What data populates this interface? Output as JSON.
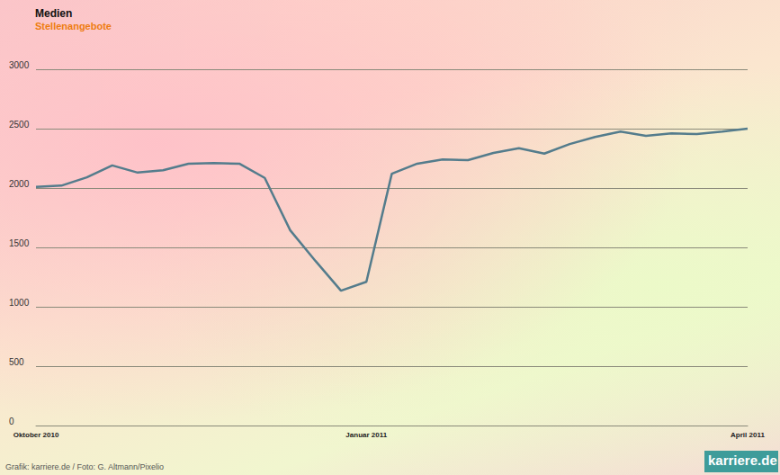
{
  "chart_data": {
    "type": "line",
    "title": "Medien",
    "subtitle": "Stellenangebote",
    "categories": [
      "Oktober 2010",
      null,
      null,
      null,
      null,
      null,
      null,
      null,
      null,
      null,
      null,
      null,
      null,
      "Januar 2011",
      null,
      null,
      null,
      null,
      null,
      null,
      null,
      null,
      null,
      null,
      null,
      null,
      null,
      null,
      "April 2011"
    ],
    "values": [
      2010,
      2020,
      2090,
      2190,
      2130,
      2150,
      2205,
      2210,
      2205,
      2085,
      1645,
      1385,
      1135,
      1210,
      2120,
      2205,
      2240,
      2235,
      2295,
      2335,
      2290,
      2370,
      2430,
      2475,
      2440,
      2460,
      2455,
      2475,
      2500
    ],
    "color": "#547c8c",
    "ylim": [
      0,
      3000
    ],
    "yticks": [
      0,
      500,
      1000,
      1500,
      2000,
      2500,
      3000
    ],
    "grid": true,
    "annotations": [
      "Grafik: karriere.de / Foto: G. Altmann/Pixelio",
      "karriere.de"
    ]
  }
}
